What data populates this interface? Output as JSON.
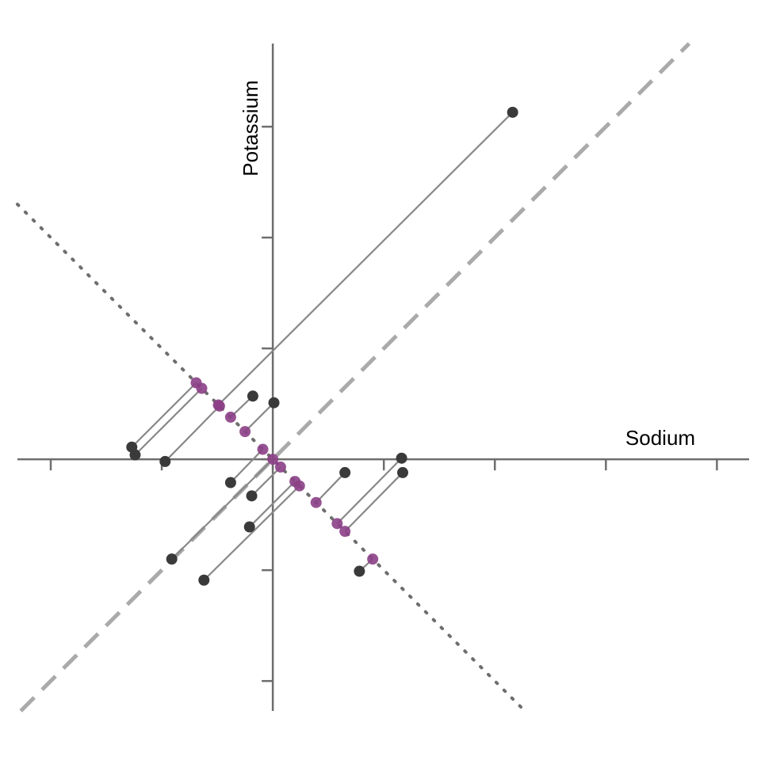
{
  "chart_data": {
    "type": "scatter",
    "x_label": "Sodium",
    "y_label": "Potassium",
    "xlim": [
      -2.3,
      4.29
    ],
    "ylim": [
      -2.27,
      3.75
    ],
    "xticks": [
      -2,
      -1,
      0,
      1,
      2,
      3,
      4
    ],
    "yticks": [
      -2,
      -1,
      0,
      1,
      2,
      3
    ],
    "points": {
      "color": "#3a3a3a",
      "x": [
        2.16,
        -1.27,
        -1.24,
        -0.97,
        -0.18,
        0.01,
        -0.38,
        -0.19,
        -0.21,
        -0.91,
        -0.62,
        0.65,
        1.16,
        1.17,
        0.78
      ],
      "y": [
        3.13,
        0.11,
        0.04,
        -0.02,
        0.57,
        0.51,
        -0.21,
        -0.33,
        -0.61,
        -0.9,
        -1.09,
        -0.12,
        0.01,
        -0.12,
        -1.01
      ]
    },
    "projections": {
      "color": "#8b3f86",
      "x": [
        -0.49,
        -0.69,
        -0.64,
        -0.48,
        -0.38,
        -0.25,
        -0.09,
        0.07,
        0.2,
        0.0,
        0.24,
        0.39,
        0.58,
        0.65,
        0.9
      ],
      "y": [
        0.49,
        0.69,
        0.64,
        0.48,
        0.38,
        0.25,
        0.09,
        -0.07,
        -0.2,
        0.0,
        -0.24,
        -0.39,
        -0.58,
        -0.65,
        -0.9
      ]
    },
    "segment_color": "#888888",
    "axis_color": "#6e6e6e"
  }
}
